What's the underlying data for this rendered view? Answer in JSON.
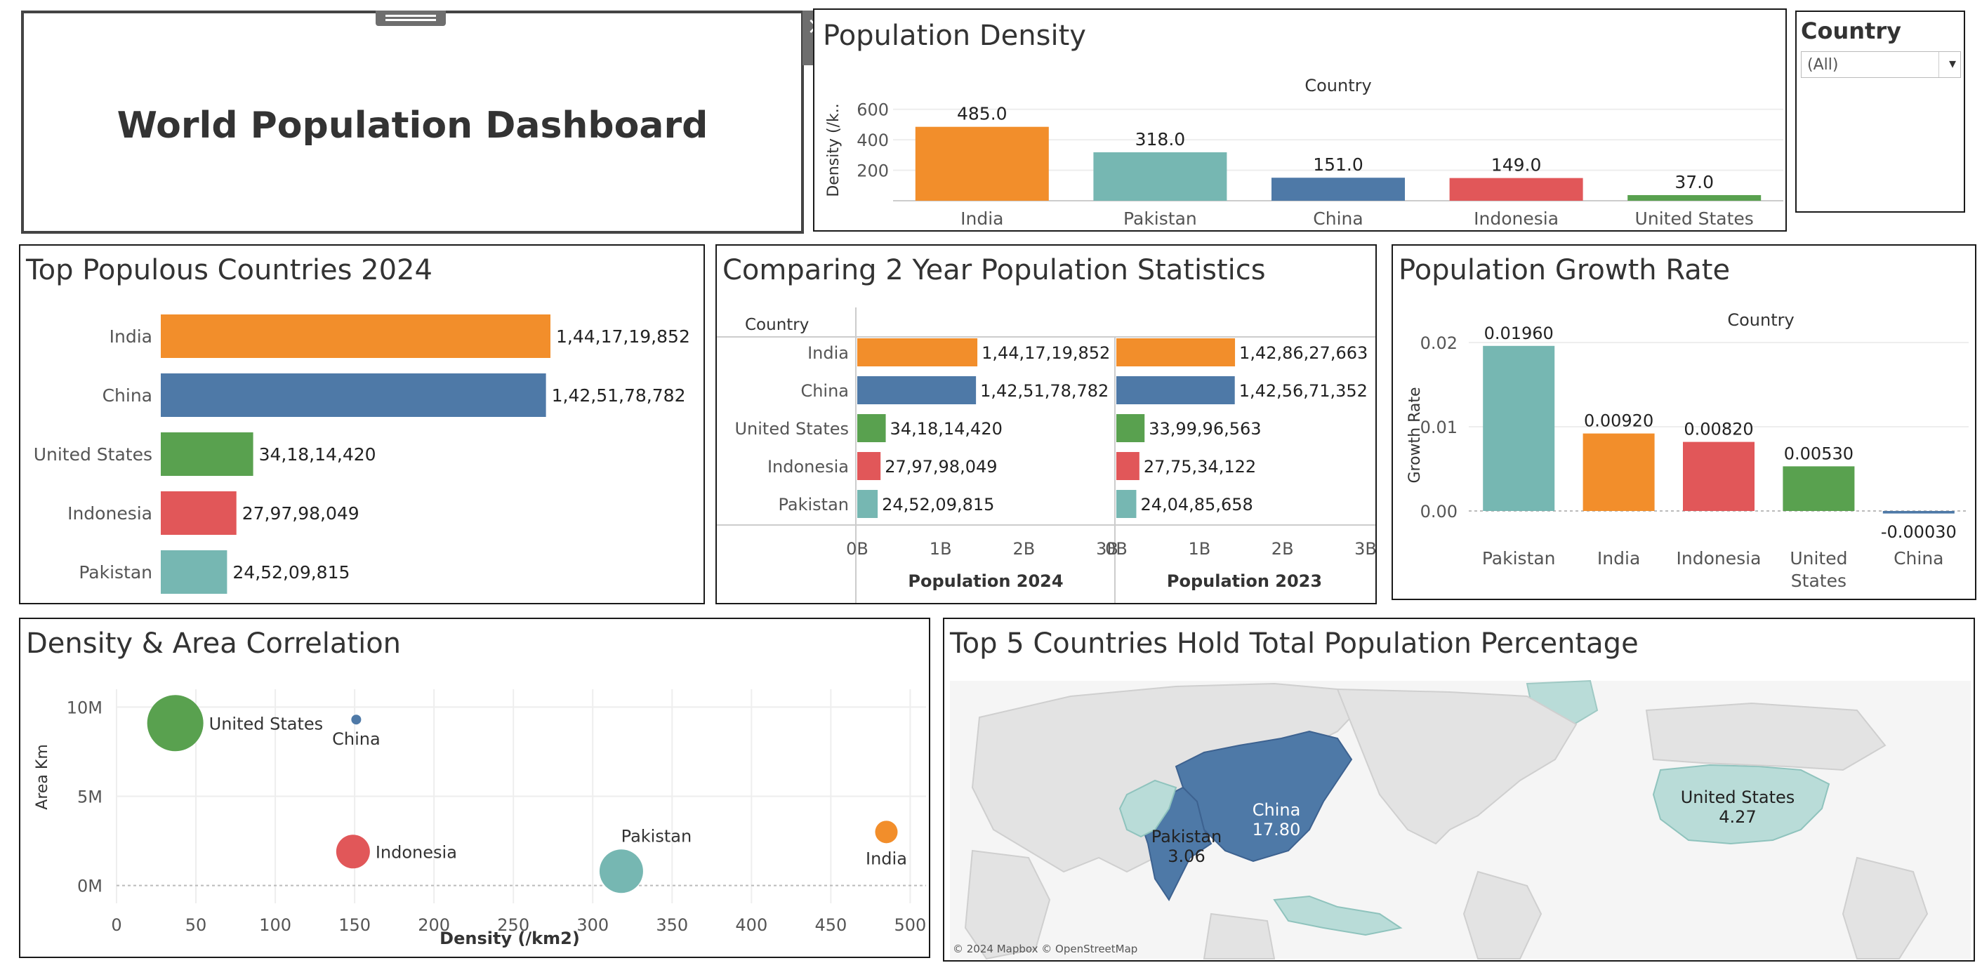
{
  "title_panel": {
    "title": "World Population Dashboard"
  },
  "filter": {
    "label": "Country",
    "value": "(All)"
  },
  "density": {
    "title": "Population Density",
    "chart_data": {
      "type": "bar",
      "column_header": "Country",
      "ylabel": "Density (/k..",
      "y_ticks": [
        200,
        400,
        600
      ],
      "ylim": [
        0,
        700
      ],
      "categories": [
        "India",
        "Pakistan",
        "China",
        "Indonesia",
        "United States"
      ],
      "values": [
        485.0,
        318.0,
        151.0,
        149.0,
        37.0
      ],
      "labels": [
        "485.0",
        "318.0",
        "151.0",
        "149.0",
        "37.0"
      ]
    }
  },
  "populous": {
    "title": "Top Populous Countries 2024",
    "chart_data": {
      "type": "bar",
      "orientation": "horizontal",
      "categories": [
        "India",
        "China",
        "United States",
        "Indonesia",
        "Pakistan"
      ],
      "values": [
        1441719852,
        1425178782,
        341814420,
        279798049,
        245209815
      ],
      "labels": [
        "1,44,17,19,852",
        "1,42,51,78,782",
        "34,18,14,420",
        "27,97,98,049",
        "24,52,09,815"
      ]
    }
  },
  "comparing": {
    "title": "Comparing 2 Year Population Statistics",
    "row_header": "Country",
    "chart_data": {
      "type": "bar",
      "orientation": "horizontal",
      "categories": [
        "India",
        "China",
        "United States",
        "Indonesia",
        "Pakistan"
      ],
      "x_ticks": [
        "0B",
        "1B",
        "2B",
        "3B"
      ],
      "xlim": [
        0,
        3000000000
      ],
      "series": [
        {
          "name": "Population 2024",
          "values": [
            1441719852,
            1425178782,
            341814420,
            279798049,
            245209815
          ],
          "labels": [
            "1,44,17,19,852",
            "1,42,51,78,782",
            "34,18,14,420",
            "27,97,98,049",
            "24,52,09,815"
          ]
        },
        {
          "name": "Population 2023",
          "values": [
            1428627663,
            1425671352,
            339996563,
            277534122,
            240485658
          ],
          "labels": [
            "1,42,86,27,663",
            "1,42,56,71,352",
            "33,99,96,563",
            "27,75,34,122",
            "24,04,85,658"
          ]
        }
      ]
    }
  },
  "growth": {
    "title": "Population Growth Rate",
    "chart_data": {
      "type": "bar",
      "column_header": "Country",
      "ylabel": "Growth Rate",
      "y_ticks": [
        "0.00",
        "0.01",
        "0.02"
      ],
      "ylim": [
        -0.001,
        0.021
      ],
      "categories": [
        [
          "Pakistan"
        ],
        [
          "India"
        ],
        [
          "Indonesia"
        ],
        [
          "United",
          "States"
        ],
        [
          "China"
        ]
      ],
      "values": [
        0.0196,
        0.0092,
        0.0082,
        0.0053,
        -0.0003
      ],
      "labels": [
        "0.01960",
        "0.00920",
        "0.00820",
        "0.00530",
        "-0.00030"
      ]
    }
  },
  "correlation": {
    "title": "Density & Area Correlation",
    "chart_data": {
      "type": "scatter",
      "xlabel": "Density (/km2)",
      "ylabel": "Area Km",
      "x_ticks": [
        0,
        50,
        100,
        150,
        200,
        250,
        300,
        350,
        400,
        450,
        500
      ],
      "y_ticks": [
        "0M",
        "5M",
        "10M"
      ],
      "xlim": [
        0,
        510
      ],
      "ylim": [
        -1,
        11
      ],
      "points": [
        {
          "name": "United States",
          "x": 37,
          "y": 9.1,
          "size": 0.24
        },
        {
          "name": "China",
          "x": 151,
          "y": 9.3,
          "size": 1.42
        },
        {
          "name": "Indonesia",
          "x": 149,
          "y": 1.9,
          "size": 0.28
        },
        {
          "name": "Pakistan",
          "x": 318,
          "y": 0.8,
          "size": 0.25
        },
        {
          "name": "India",
          "x": 485,
          "y": 3.0,
          "size": 1.44
        }
      ]
    }
  },
  "map": {
    "title": "Top 5 Countries Hold Total Population Percentage",
    "attribution": "© 2024 Mapbox © OpenStreetMap",
    "labels": [
      {
        "name": "China",
        "value": "17.80"
      },
      {
        "name": "Pakistan",
        "value": "3.06"
      },
      {
        "name": "United States",
        "value": "4.27"
      }
    ]
  },
  "colors": {
    "India": "#f28e2b",
    "China": "#4e79a7",
    "United States": "#59a14f",
    "Indonesia": "#e15759",
    "Pakistan": "#76b7b2",
    "map_land": "#e3e3e3",
    "map_water": "#f7f7f7"
  }
}
